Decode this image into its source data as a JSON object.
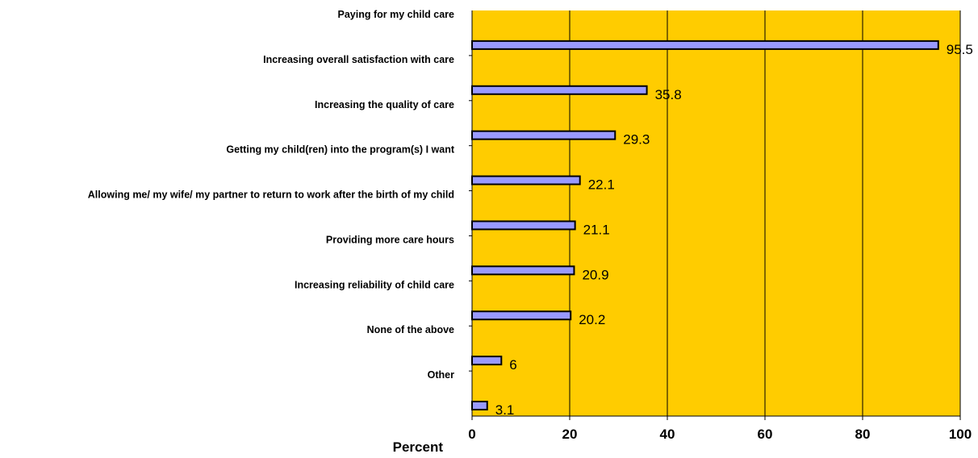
{
  "chart_data": {
    "type": "bar",
    "orientation": "horizontal",
    "categories": [
      "Paying for my child care",
      "Increasing overall satisfaction with care",
      "Increasing the quality of care",
      "Getting my child(ren) into the program(s) I want",
      "Allowing me/ my wife/ my partner to return to work after the birth of my child",
      "Providing more care hours",
      "Increasing reliability of child care",
      "None of the above",
      "Other"
    ],
    "values": [
      95.5,
      35.8,
      29.3,
      22.1,
      21.1,
      20.9,
      20.2,
      6,
      3.1
    ],
    "value_labels": [
      "95.5",
      "35.8",
      "29.3",
      "22.1",
      "21.1",
      "20.9",
      "20.2",
      "6",
      "3.1"
    ],
    "xlabel": "Percent",
    "ylabel": "",
    "xlim": [
      0,
      100
    ],
    "xticks": [
      "0",
      "20",
      "40",
      "60",
      "80",
      "100"
    ],
    "grid": "vertical",
    "legend": "none",
    "colors": {
      "plot_background": "#FFCC00",
      "bar_fill": "#9999FF",
      "bar_stroke": "#000000",
      "gridline": "#000000"
    }
  }
}
